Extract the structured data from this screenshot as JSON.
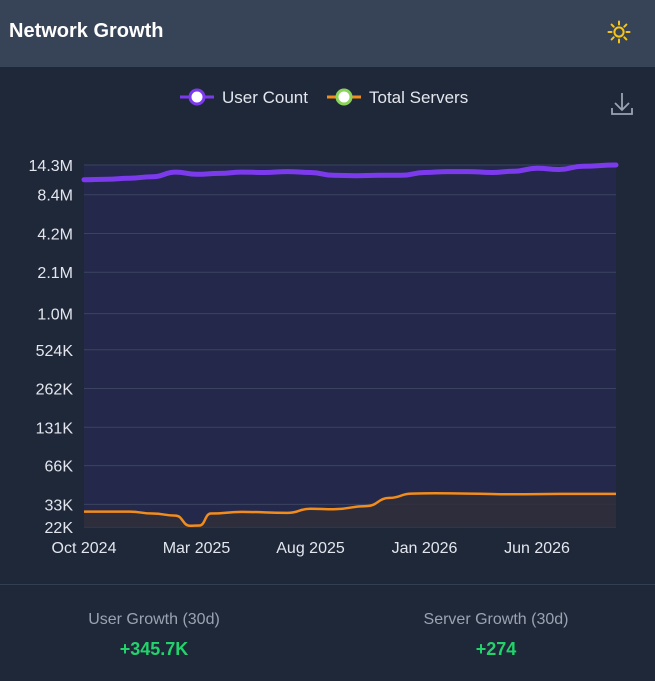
{
  "header": {
    "title": "Network Growth",
    "theme_icon": "sun-icon"
  },
  "toolbar": {
    "download_icon": "download-icon"
  },
  "colors": {
    "user_series": "#7c3aed",
    "server_series": "#f28c1a",
    "positive": "#22d36b"
  },
  "chart_data": {
    "type": "line",
    "title": "",
    "xlabel": "",
    "ylabel": "",
    "y_scale": "log",
    "ylim": [
      22000,
      14300000
    ],
    "y_ticks": [
      22000,
      33000,
      66000,
      131000,
      262000,
      524000,
      1000000,
      2100000,
      4200000,
      8400000,
      14300000
    ],
    "y_tick_labels": [
      "22K",
      "33K",
      "66K",
      "131K",
      "262K",
      "524K",
      "1.0M",
      "2.1M",
      "4.2M",
      "8.4M",
      "14.3M"
    ],
    "x_ticks": [
      "2024-10-01",
      "2025-03-01",
      "2025-08-01",
      "2026-01-01",
      "2026-06-01"
    ],
    "x_tick_labels": [
      "Oct 2024",
      "Mar 2025",
      "Aug 2025",
      "Jan 2026",
      "Jun 2026"
    ],
    "x_range": [
      "2024-10-01",
      "2026-09-15"
    ],
    "grid": true,
    "legend_position": "top-center",
    "series": [
      {
        "name": "User Count",
        "color": "#7c3aed",
        "points": [
          [
            "2024-10-01",
            11000000
          ],
          [
            "2024-11-01",
            11100000
          ],
          [
            "2024-12-01",
            11300000
          ],
          [
            "2025-01-01",
            11600000
          ],
          [
            "2025-02-01",
            12600000
          ],
          [
            "2025-03-01",
            12100000
          ],
          [
            "2025-04-01",
            12300000
          ],
          [
            "2025-05-01",
            12600000
          ],
          [
            "2025-06-01",
            12500000
          ],
          [
            "2025-07-01",
            12700000
          ],
          [
            "2025-08-01",
            12500000
          ],
          [
            "2025-09-01",
            11900000
          ],
          [
            "2025-10-01",
            11800000
          ],
          [
            "2025-11-01",
            11900000
          ],
          [
            "2025-12-01",
            11900000
          ],
          [
            "2026-01-01",
            12500000
          ],
          [
            "2026-02-01",
            12700000
          ],
          [
            "2026-03-01",
            12700000
          ],
          [
            "2026-04-01",
            12500000
          ],
          [
            "2026-05-01",
            12800000
          ],
          [
            "2026-06-01",
            13500000
          ],
          [
            "2026-07-01",
            13200000
          ],
          [
            "2026-08-01",
            14000000
          ],
          [
            "2026-09-15",
            14300000
          ]
        ]
      },
      {
        "name": "Total Servers",
        "color": "#f28c1a",
        "points": [
          [
            "2024-10-01",
            29000
          ],
          [
            "2024-11-01",
            29000
          ],
          [
            "2024-12-01",
            29000
          ],
          [
            "2025-01-01",
            28000
          ],
          [
            "2025-02-01",
            27000
          ],
          [
            "2025-02-20",
            22500
          ],
          [
            "2025-03-05",
            22600
          ],
          [
            "2025-03-20",
            28000
          ],
          [
            "2025-05-01",
            28800
          ],
          [
            "2025-07-01",
            28300
          ],
          [
            "2025-08-01",
            30500
          ],
          [
            "2025-09-01",
            30200
          ],
          [
            "2025-10-15",
            32000
          ],
          [
            "2025-11-15",
            37000
          ],
          [
            "2025-12-15",
            40000
          ],
          [
            "2026-01-15",
            40300
          ],
          [
            "2026-03-01",
            40000
          ],
          [
            "2026-05-01",
            39500
          ],
          [
            "2026-07-01",
            39800
          ],
          [
            "2026-09-15",
            39800
          ]
        ]
      }
    ]
  },
  "stats": [
    {
      "label": "User Growth (30d)",
      "value": "+345.7K"
    },
    {
      "label": "Server Growth (30d)",
      "value": "+274"
    }
  ]
}
